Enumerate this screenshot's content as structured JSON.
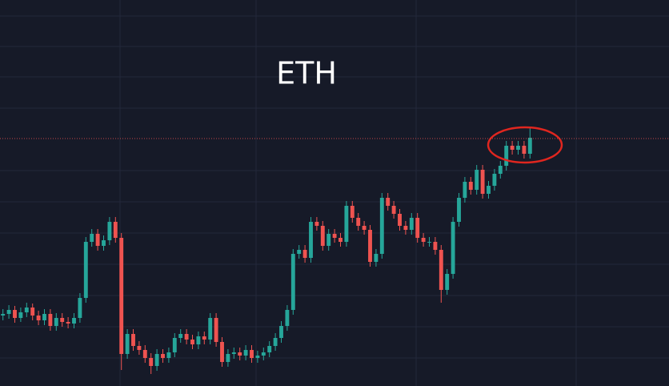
{
  "chart_data": {
    "type": "candlestick",
    "title": "ETH",
    "up_color": "#26a69a",
    "down_color": "#ef5350",
    "price_line_color": "#ef5350",
    "ylim": [
      0,
      482
    ],
    "price_line": 309,
    "ohlc": [
      [
        88,
        96,
        82,
        90
      ],
      [
        90,
        101,
        84,
        95
      ],
      [
        95,
        100,
        79,
        85
      ],
      [
        85,
        98,
        80,
        92
      ],
      [
        92,
        104,
        86,
        98
      ],
      [
        98,
        103,
        82,
        88
      ],
      [
        88,
        94,
        76,
        82
      ],
      [
        82,
        96,
        76,
        90
      ],
      [
        90,
        96,
        69,
        75
      ],
      [
        75,
        91,
        69,
        85
      ],
      [
        85,
        91,
        74,
        80
      ],
      [
        80,
        86,
        72,
        78
      ],
      [
        78,
        91,
        72,
        85
      ],
      [
        85,
        116,
        79,
        110
      ],
      [
        110,
        186,
        104,
        180
      ],
      [
        180,
        196,
        174,
        190
      ],
      [
        190,
        196,
        169,
        175
      ],
      [
        175,
        188,
        169,
        182
      ],
      [
        182,
        211,
        176,
        205
      ],
      [
        205,
        211,
        179,
        185
      ],
      [
        185,
        191,
        20,
        40
      ],
      [
        40,
        71,
        34,
        65
      ],
      [
        65,
        71,
        44,
        50
      ],
      [
        50,
        56,
        39,
        45
      ],
      [
        45,
        51,
        29,
        35
      ],
      [
        35,
        41,
        15,
        25
      ],
      [
        25,
        46,
        19,
        40
      ],
      [
        40,
        46,
        29,
        35
      ],
      [
        35,
        48,
        29,
        42
      ],
      [
        42,
        66,
        36,
        60
      ],
      [
        60,
        71,
        54,
        65
      ],
      [
        65,
        71,
        52,
        58
      ],
      [
        58,
        64,
        46,
        52
      ],
      [
        52,
        68,
        46,
        62
      ],
      [
        62,
        68,
        52,
        58
      ],
      [
        58,
        91,
        52,
        85
      ],
      [
        85,
        91,
        49,
        55
      ],
      [
        55,
        61,
        24,
        30
      ],
      [
        30,
        46,
        24,
        40
      ],
      [
        40,
        48,
        34,
        42
      ],
      [
        42,
        48,
        32,
        38
      ],
      [
        38,
        51,
        32,
        45
      ],
      [
        45,
        51,
        29,
        35
      ],
      [
        35,
        44,
        29,
        38
      ],
      [
        38,
        48,
        32,
        42
      ],
      [
        42,
        56,
        36,
        50
      ],
      [
        50,
        66,
        44,
        60
      ],
      [
        60,
        81,
        54,
        75
      ],
      [
        75,
        101,
        69,
        95
      ],
      [
        95,
        171,
        89,
        165
      ],
      [
        165,
        176,
        159,
        170
      ],
      [
        170,
        176,
        154,
        160
      ],
      [
        160,
        211,
        154,
        205
      ],
      [
        205,
        211,
        194,
        200
      ],
      [
        200,
        206,
        169,
        175
      ],
      [
        175,
        196,
        169,
        190
      ],
      [
        190,
        196,
        179,
        185
      ],
      [
        185,
        191,
        174,
        180
      ],
      [
        180,
        231,
        174,
        225
      ],
      [
        225,
        231,
        204,
        210
      ],
      [
        210,
        216,
        194,
        200
      ],
      [
        200,
        206,
        189,
        195
      ],
      [
        195,
        201,
        149,
        155
      ],
      [
        155,
        171,
        149,
        165
      ],
      [
        165,
        241,
        159,
        235
      ],
      [
        235,
        241,
        219,
        225
      ],
      [
        225,
        231,
        209,
        215
      ],
      [
        215,
        221,
        194,
        200
      ],
      [
        200,
        206,
        189,
        195
      ],
      [
        195,
        216,
        189,
        210
      ],
      [
        210,
        216,
        179,
        185
      ],
      [
        185,
        191,
        174,
        180
      ],
      [
        180,
        186,
        174,
        180
      ],
      [
        180,
        186,
        164,
        170
      ],
      [
        170,
        176,
        104,
        120
      ],
      [
        120,
        146,
        114,
        140
      ],
      [
        140,
        211,
        134,
        205
      ],
      [
        205,
        241,
        199,
        235
      ],
      [
        235,
        261,
        229,
        255
      ],
      [
        255,
        261,
        239,
        245
      ],
      [
        245,
        276,
        239,
        270
      ],
      [
        270,
        276,
        234,
        240
      ],
      [
        240,
        256,
        234,
        250
      ],
      [
        250,
        271,
        244,
        265
      ],
      [
        265,
        281,
        259,
        275
      ],
      [
        275,
        306,
        269,
        300
      ],
      [
        300,
        306,
        289,
        295
      ],
      [
        295,
        306,
        289,
        300
      ],
      [
        300,
        306,
        284,
        290
      ],
      [
        290,
        322,
        284,
        310
      ]
    ]
  }
}
